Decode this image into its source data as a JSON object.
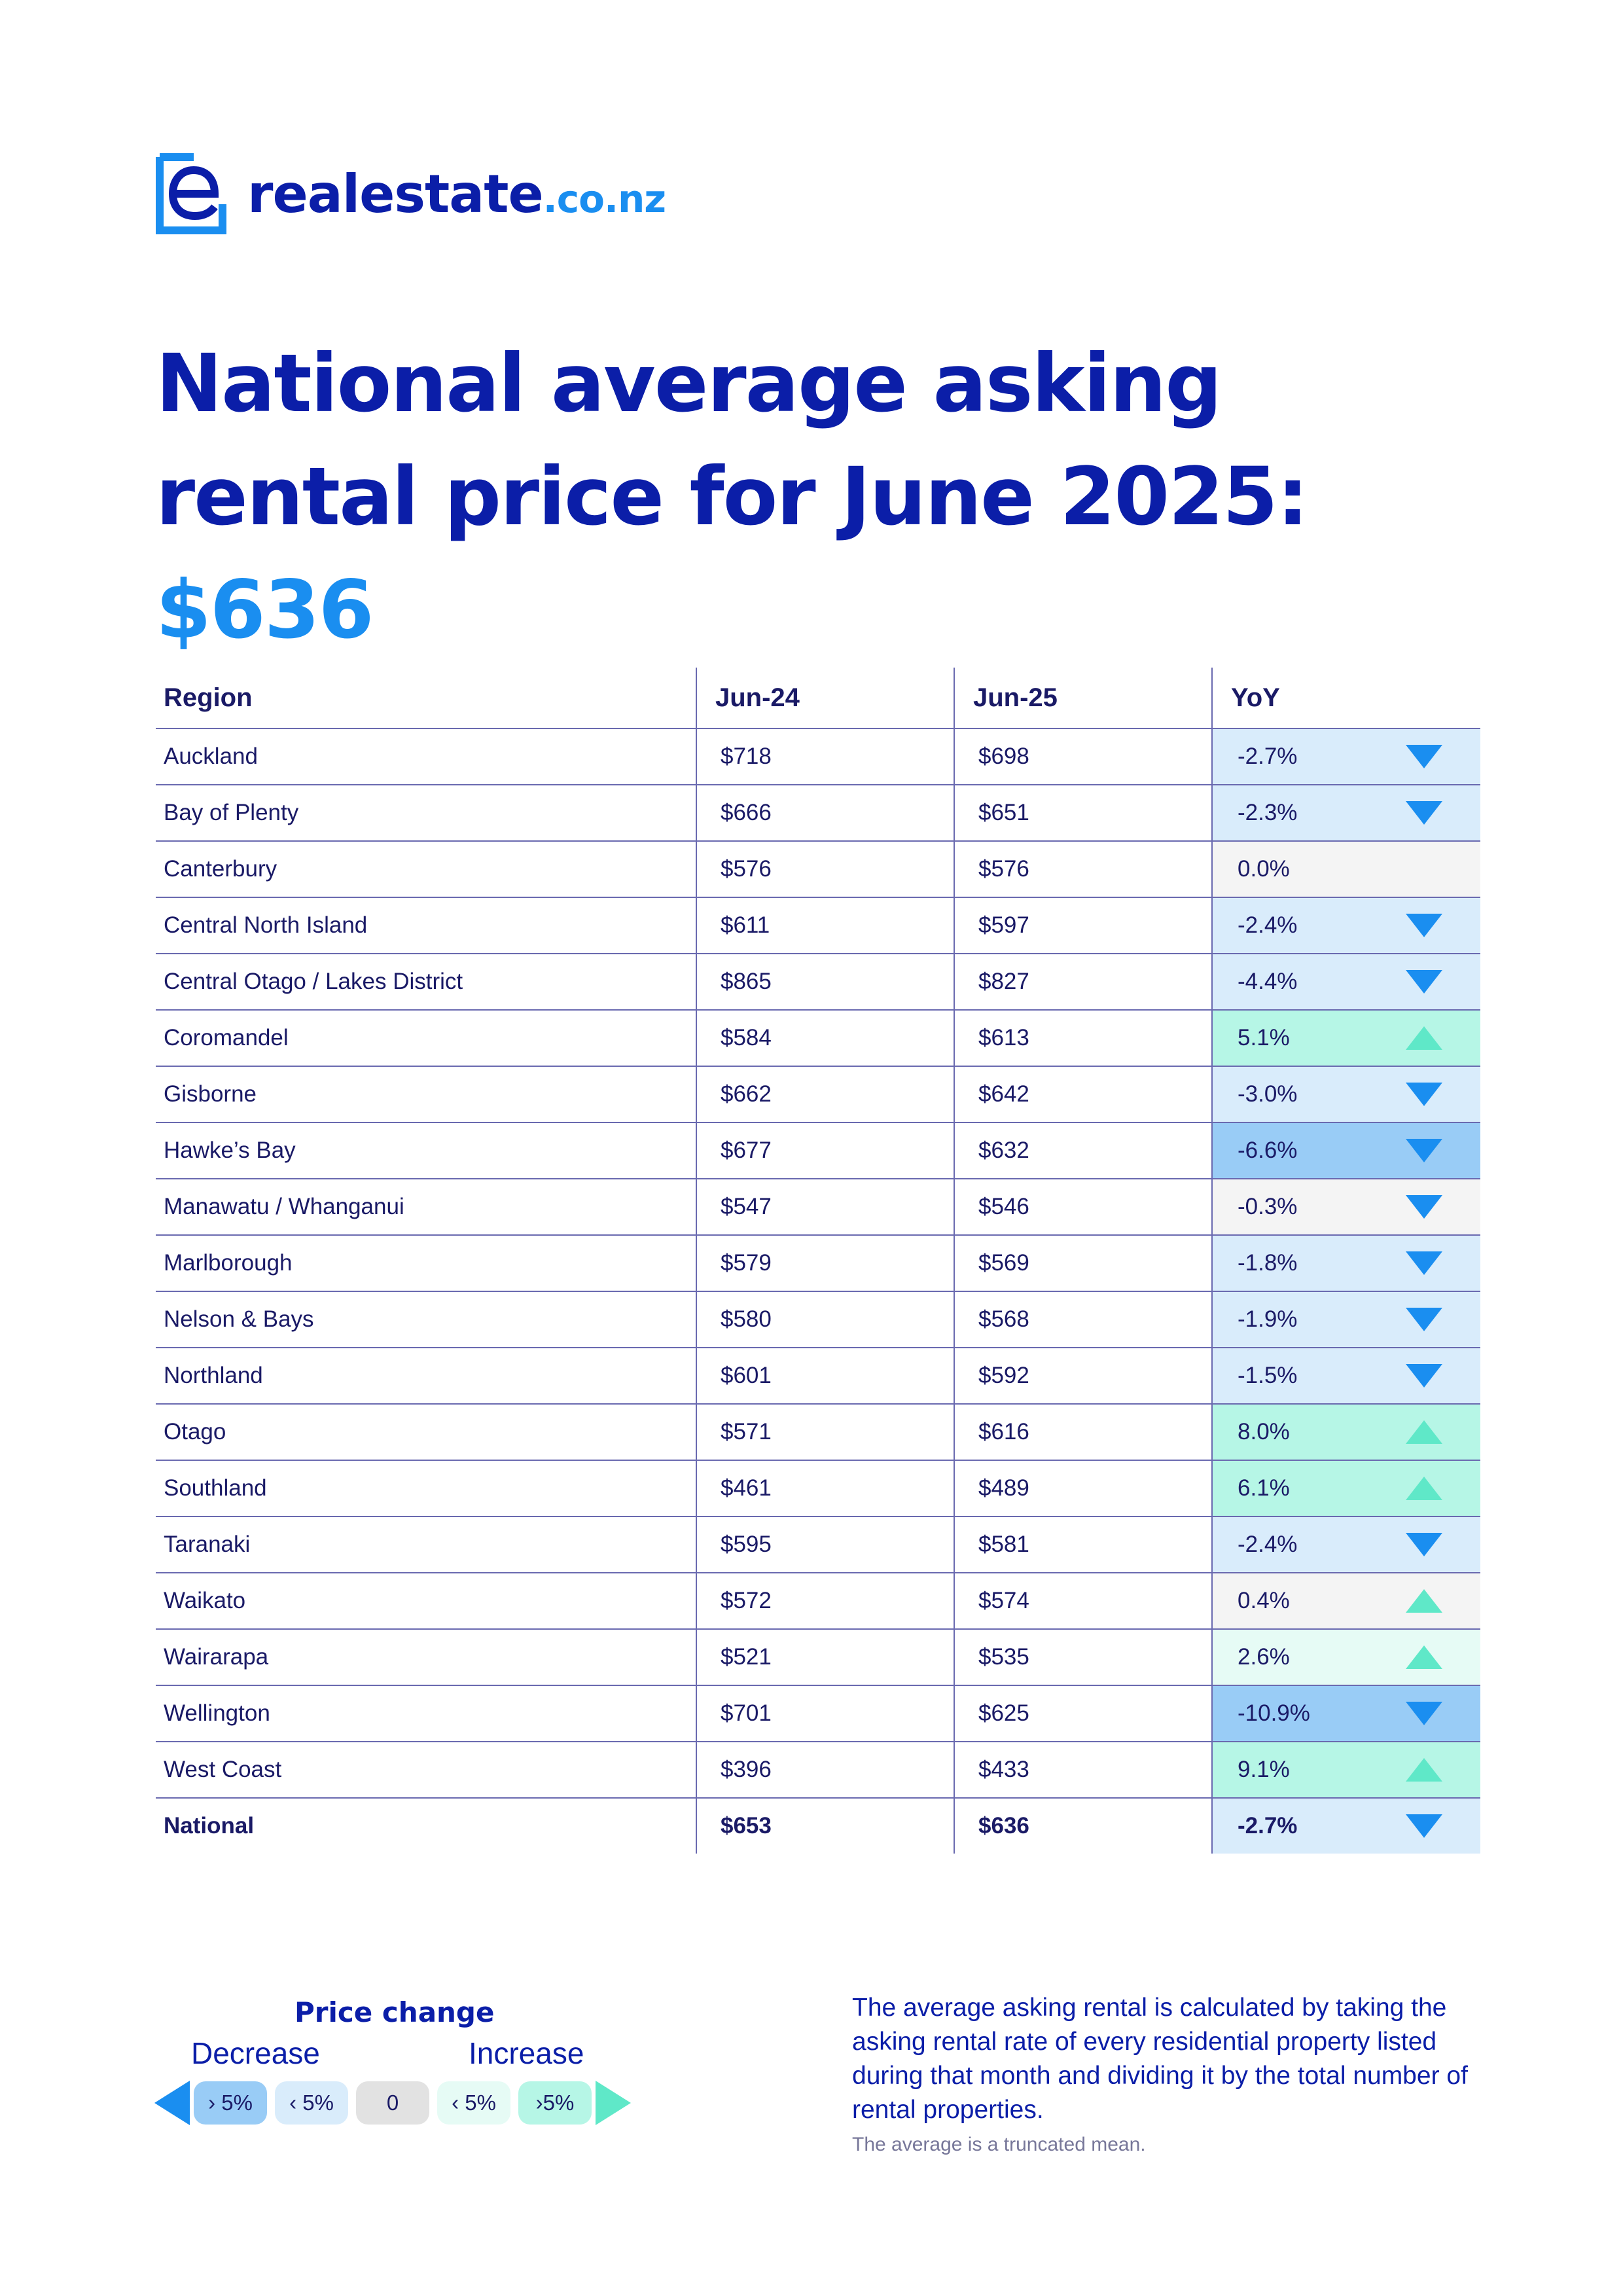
{
  "brand": {
    "name": "realestate",
    "tld": ".co.nz",
    "primary_color": "#0b1ea8",
    "accent_color": "#1a8ef0",
    "logo_icon": "e-logo-icon"
  },
  "title": {
    "text": "National average asking rental price for June 2025:",
    "highlight": "$636"
  },
  "table": {
    "headers": {
      "region": "Region",
      "jun24": "Jun-24",
      "jun25": "Jun-25",
      "yoy": "YoY"
    },
    "rows": [
      {
        "region": "Auckland",
        "jun24": "$718",
        "jun25": "$698",
        "yoy": "-2.7%",
        "trend": "down",
        "bg": "#d9ecfb"
      },
      {
        "region": "Bay of Plenty",
        "jun24": "$666",
        "jun25": "$651",
        "yoy": "-2.3%",
        "trend": "down",
        "bg": "#d9ecfb"
      },
      {
        "region": "Canterbury",
        "jun24": "$576",
        "jun25": "$576",
        "yoy": "0.0%",
        "trend": "none",
        "bg": "#f4f4f4"
      },
      {
        "region": "Central North Island",
        "jun24": "$611",
        "jun25": "$597",
        "yoy": "-2.4%",
        "trend": "down",
        "bg": "#d9ecfb"
      },
      {
        "region": "Central Otago / Lakes District",
        "jun24": "$865",
        "jun25": "$827",
        "yoy": "-4.4%",
        "trend": "down",
        "bg": "#d9ecfb"
      },
      {
        "region": "Coromandel",
        "jun24": "$584",
        "jun25": "$613",
        "yoy": "5.1%",
        "trend": "up",
        "bg": "#b6f6e6"
      },
      {
        "region": "Gisborne",
        "jun24": "$662",
        "jun25": "$642",
        "yoy": "-3.0%",
        "trend": "down",
        "bg": "#d9ecfb"
      },
      {
        "region": "Hawke’s Bay",
        "jun24": "$677",
        "jun25": "$632",
        "yoy": "-6.6%",
        "trend": "down",
        "bg": "#99ccf6"
      },
      {
        "region": "Manawatu / Whanganui",
        "jun24": "$547",
        "jun25": "$546",
        "yoy": "-0.3%",
        "trend": "down",
        "bg": "#f4f4f4"
      },
      {
        "region": "Marlborough",
        "jun24": "$579",
        "jun25": "$569",
        "yoy": "-1.8%",
        "trend": "down",
        "bg": "#d9ecfb"
      },
      {
        "region": "Nelson & Bays",
        "jun24": "$580",
        "jun25": "$568",
        "yoy": "-1.9%",
        "trend": "down",
        "bg": "#d9ecfb"
      },
      {
        "region": "Northland",
        "jun24": "$601",
        "jun25": "$592",
        "yoy": "-1.5%",
        "trend": "down",
        "bg": "#d9ecfb"
      },
      {
        "region": "Otago",
        "jun24": "$571",
        "jun25": "$616",
        "yoy": "8.0%",
        "trend": "up",
        "bg": "#b6f6e6"
      },
      {
        "region": "Southland",
        "jun24": "$461",
        "jun25": "$489",
        "yoy": "6.1%",
        "trend": "up",
        "bg": "#b6f6e6"
      },
      {
        "region": "Taranaki",
        "jun24": "$595",
        "jun25": "$581",
        "yoy": "-2.4%",
        "trend": "down",
        "bg": "#d9ecfb"
      },
      {
        "region": "Waikato",
        "jun24": "$572",
        "jun25": "$574",
        "yoy": "0.4%",
        "trend": "up",
        "bg": "#f4f4f4"
      },
      {
        "region": "Wairarapa",
        "jun24": "$521",
        "jun25": "$535",
        "yoy": "2.6%",
        "trend": "up",
        "bg": "#e6fbf5"
      },
      {
        "region": "Wellington",
        "jun24": "$701",
        "jun25": "$625",
        "yoy": "-10.9%",
        "trend": "down",
        "bg": "#99ccf6"
      },
      {
        "region": "West Coast",
        "jun24": "$396",
        "jun25": "$433",
        "yoy": "9.1%",
        "trend": "up",
        "bg": "#b6f6e6"
      },
      {
        "region": "National",
        "jun24": "$653",
        "jun25": "$636",
        "yoy": "-2.7%",
        "trend": "down",
        "bg": "#d9ecfb",
        "bold": true
      }
    ]
  },
  "legend": {
    "title": "Price change",
    "decrease": "Decrease",
    "increase": "Increase",
    "pills": [
      {
        "label": "› 5%",
        "bg": "#99ccf6"
      },
      {
        "label": "‹ 5%",
        "bg": "#d9ecfb"
      },
      {
        "label": "0",
        "bg": "#e2e2e2"
      },
      {
        "label": "‹ 5%",
        "bg": "#e6fbf5"
      },
      {
        "label": "›5%",
        "bg": "#b6f6e6"
      }
    ]
  },
  "note": {
    "text": "The average asking rental is calculated by taking the asking rental rate of every residential property listed during that month and dividing it by the total number of rental properties.",
    "small": "The average is a truncated mean."
  }
}
